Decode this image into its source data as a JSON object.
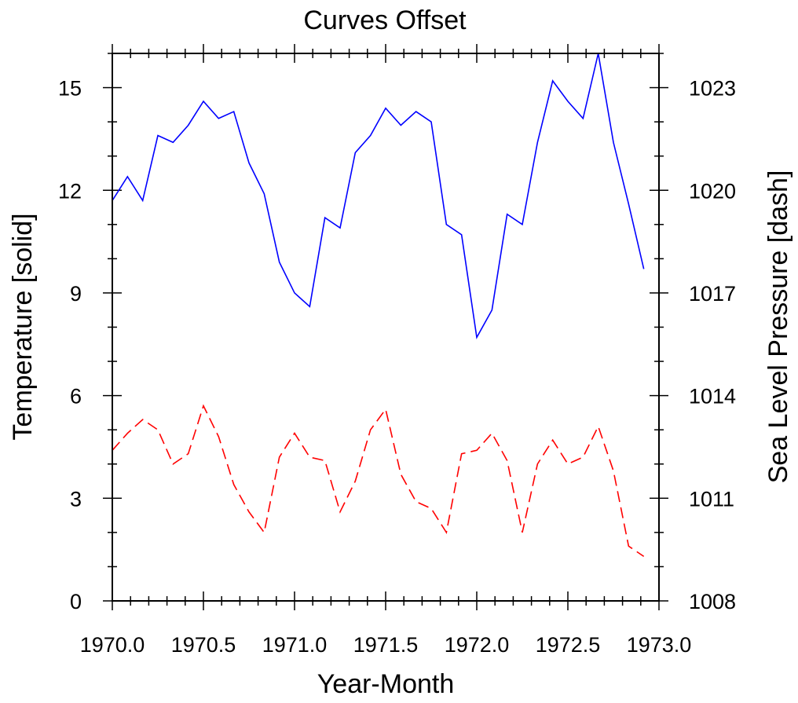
{
  "chart_data": {
    "type": "line",
    "title": "Curves Offset",
    "xlabel": "Year-Month",
    "ylabel_left": "Temperature  [solid]",
    "ylabel_right": "Sea Level Pressure  [dash]",
    "xlim": [
      1970.0,
      1973.0
    ],
    "ylim_left": [
      0,
      16
    ],
    "ylim_right": [
      1008,
      1024
    ],
    "x_ticks": [
      "1970.0",
      "1970.5",
      "1971.0",
      "1971.5",
      "1972.0",
      "1972.5",
      "1973.0"
    ],
    "y_left_ticks": [
      "0",
      "3",
      "6",
      "9",
      "12",
      "15"
    ],
    "y_right_ticks": [
      "1008",
      "1011",
      "1014",
      "1017",
      "1020",
      "1023"
    ],
    "grid": false,
    "x": [
      1970.0,
      1970.0833,
      1970.1667,
      1970.25,
      1970.3333,
      1970.4167,
      1970.5,
      1970.5833,
      1970.6667,
      1970.75,
      1970.8333,
      1970.9167,
      1971.0,
      1971.0833,
      1971.1667,
      1971.25,
      1971.3333,
      1971.4167,
      1971.5,
      1971.5833,
      1971.6667,
      1971.75,
      1971.8333,
      1971.9167,
      1972.0,
      1972.0833,
      1972.1667,
      1972.25,
      1972.3333,
      1972.4167,
      1972.5,
      1972.5833,
      1972.6667,
      1972.75,
      1972.8333,
      1972.9167
    ],
    "series": [
      {
        "axis": "left",
        "style": "solid",
        "color": "#0000ff",
        "values": [
          11.7,
          12.4,
          11.7,
          13.6,
          13.4,
          13.9,
          14.6,
          14.1,
          14.3,
          12.8,
          11.9,
          9.9,
          9.0,
          8.6,
          11.2,
          10.9,
          13.1,
          13.6,
          14.4,
          13.9,
          14.3,
          14.0,
          11.0,
          10.7,
          7.7,
          8.5,
          11.3,
          11.0,
          13.4,
          15.2,
          14.6,
          14.1,
          16.0,
          13.4,
          11.6,
          9.7
        ]
      },
      {
        "axis": "right",
        "style": "dash",
        "color": "#ff0000",
        "values": [
          1012.4,
          1012.9,
          1013.3,
          1013.0,
          1012.0,
          1012.3,
          1013.7,
          1012.8,
          1011.4,
          1010.6,
          1010.0,
          1012.2,
          1012.9,
          1012.2,
          1012.1,
          1010.6,
          1011.5,
          1013.0,
          1013.6,
          1011.7,
          1010.9,
          1010.7,
          1010.0,
          1012.3,
          1012.4,
          1012.9,
          1012.1,
          1010.0,
          1012.0,
          1012.7,
          1012.0,
          1012.2,
          1013.1,
          1011.8,
          1009.6,
          1009.3
        ]
      }
    ]
  }
}
